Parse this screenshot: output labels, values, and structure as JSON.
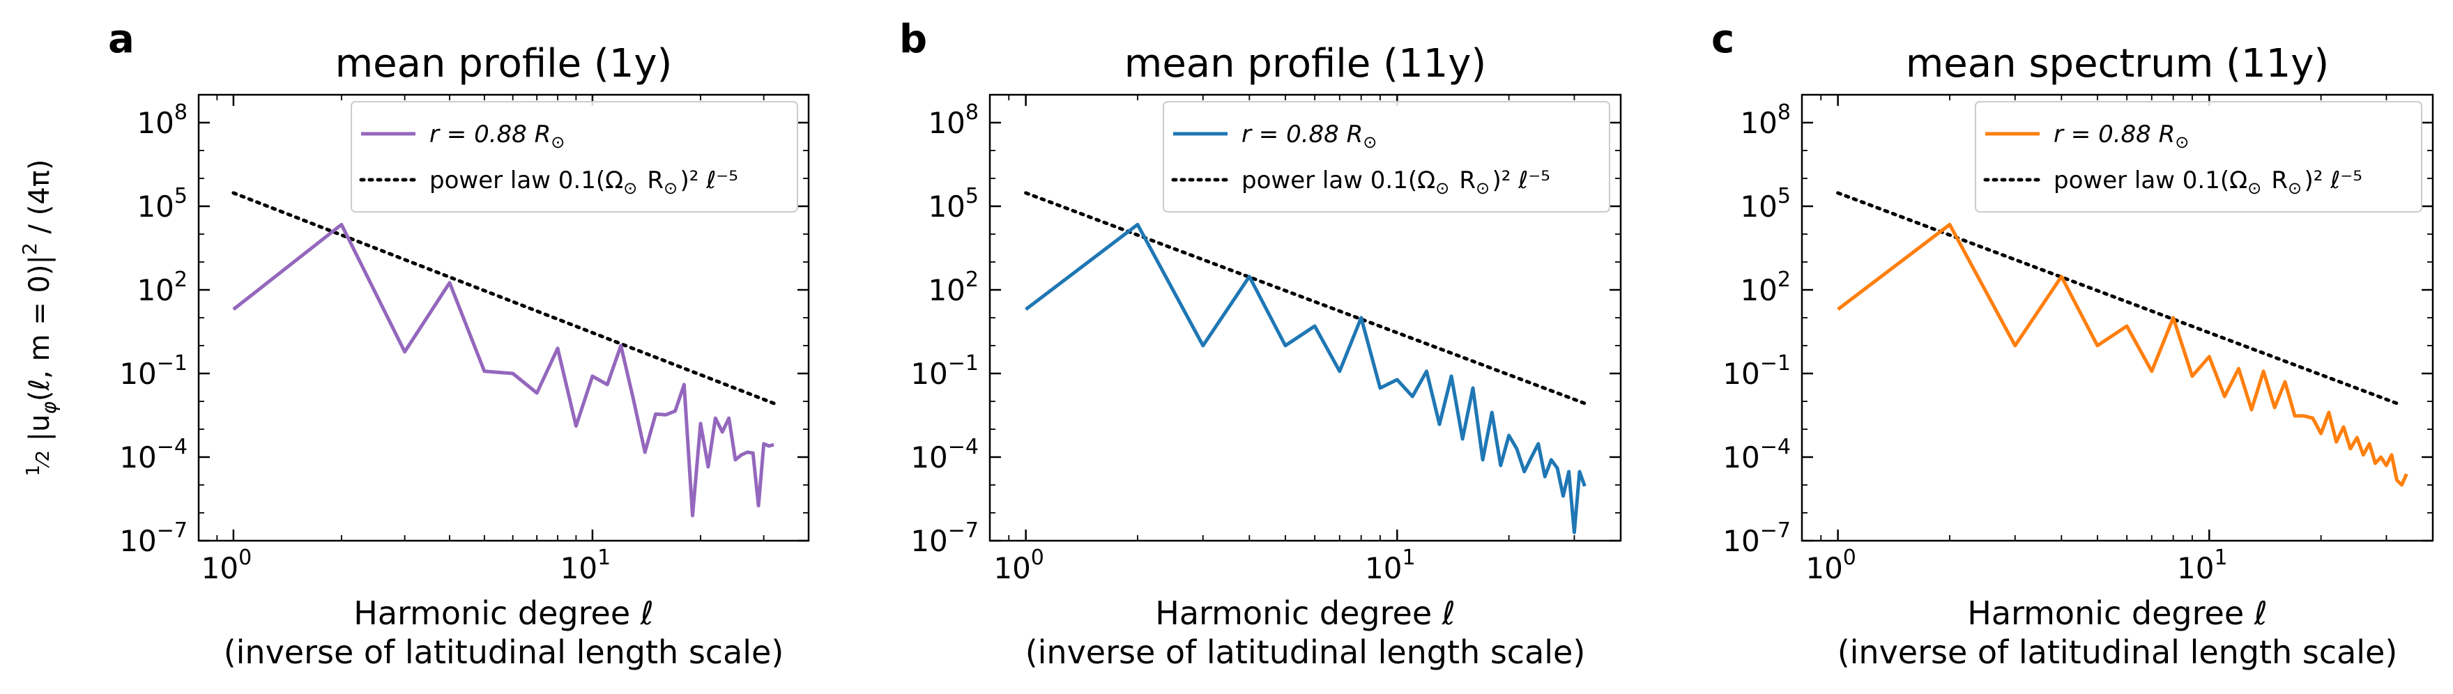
{
  "figure": {
    "ylabel": "½ |u_φ(ℓ, m = 0)|² / (4π)",
    "ylabel_parts": {
      "frac_num": "1",
      "frac_den": "2",
      "body": "|u",
      "sub": "φ",
      "args": "(ℓ, m = 0)|",
      "sup": "2",
      "tail": " / (4π)"
    }
  },
  "chart_data": [
    {
      "type": "line",
      "letter": "a",
      "title": "mean profile (1y)",
      "xlabel_line1": "Harmonic degree ℓ",
      "xlabel_line2": "(inverse of latitudinal length scale)",
      "xscale": "log",
      "yscale": "log",
      "xlim": [
        0.8,
        40
      ],
      "ylim": [
        1e-07,
        1000000000.0
      ],
      "x_ticks": [
        {
          "base": "10",
          "exp": "0",
          "value": 1
        },
        {
          "base": "10",
          "exp": "1",
          "value": 10
        }
      ],
      "y_ticks": [
        {
          "base": "10",
          "exp": "8",
          "value": 100000000.0
        },
        {
          "base": "10",
          "exp": "5",
          "value": 100000.0
        },
        {
          "base": "10",
          "exp": "2",
          "value": 100.0
        },
        {
          "base": "10",
          "exp": "−1",
          "value": 0.1
        },
        {
          "base": "10",
          "exp": "−4",
          "value": 0.0001
        },
        {
          "base": "10",
          "exp": "−7",
          "value": 1e-07
        }
      ],
      "legend": {
        "position": "top-right",
        "series_label": "r = 0.88 R⊙",
        "powerlaw_label": "power law 0.1(Ω⊙ R⊙)² ℓ⁻⁵"
      },
      "series": [
        {
          "name": "r = 0.88 R⊙",
          "color": "#9467bd",
          "x": [
            1,
            2,
            3,
            4,
            5,
            6,
            7,
            8,
            9,
            10,
            11,
            12,
            13,
            14,
            15,
            16,
            17,
            18,
            19,
            20,
            21,
            22,
            23,
            24,
            25,
            26,
            27,
            28,
            29,
            30,
            31,
            32
          ],
          "y": [
            20,
            22000,
            0.6,
            180,
            0.12,
            0.1,
            0.02,
            0.8,
            0.0013,
            0.08,
            0.04,
            1.0,
            0.012,
            0.00015,
            0.0035,
            0.0033,
            0.0045,
            0.04,
            8e-07,
            0.0016,
            4.5e-05,
            0.0025,
            0.0008,
            0.0025,
            8e-05,
            0.00012,
            0.00015,
            0.00014,
            1.8e-06,
            0.0003,
            0.00025,
            0.00028
          ]
        }
      ],
      "powerlaw": {
        "name": "power law 0.1(Ω⊙ R⊙)² ℓ⁻⁵",
        "color": "#000000",
        "x": [
          1,
          32
        ],
        "y": [
          300000,
          0.0085
        ]
      }
    },
    {
      "type": "line",
      "letter": "b",
      "title": "mean profile (11y)",
      "xlabel_line1": "Harmonic degree ℓ",
      "xlabel_line2": "(inverse of latitudinal length scale)",
      "xscale": "log",
      "yscale": "log",
      "xlim": [
        0.8,
        40
      ],
      "ylim": [
        1e-07,
        1000000000.0
      ],
      "x_ticks": [
        {
          "base": "10",
          "exp": "0",
          "value": 1
        },
        {
          "base": "10",
          "exp": "1",
          "value": 10
        }
      ],
      "y_ticks": [
        {
          "base": "10",
          "exp": "8",
          "value": 100000000.0
        },
        {
          "base": "10",
          "exp": "5",
          "value": 100000.0
        },
        {
          "base": "10",
          "exp": "2",
          "value": 100.0
        },
        {
          "base": "10",
          "exp": "−1",
          "value": 0.1
        },
        {
          "base": "10",
          "exp": "−4",
          "value": 0.0001
        },
        {
          "base": "10",
          "exp": "−7",
          "value": 1e-07
        }
      ],
      "legend": {
        "position": "top-right",
        "series_label": "r = 0.88 R⊙",
        "powerlaw_label": "power law 0.1(Ω⊙ R⊙)² ℓ⁻⁵"
      },
      "series": [
        {
          "name": "r = 0.88 R⊙",
          "color": "#1f77b4",
          "x": [
            1,
            2,
            3,
            4,
            5,
            6,
            7,
            8,
            9,
            10,
            11,
            12,
            13,
            14,
            15,
            16,
            17,
            18,
            19,
            20,
            21,
            22,
            23,
            24,
            25,
            26,
            27,
            28,
            29,
            30,
            31,
            32
          ],
          "y": [
            20,
            22000,
            1.0,
            300,
            1.0,
            5.0,
            0.12,
            10,
            0.03,
            0.06,
            0.015,
            0.12,
            0.0015,
            0.08,
            0.00045,
            0.03,
            8e-05,
            0.004,
            5e-05,
            0.0006,
            0.0002,
            3e-05,
            0.0001,
            0.0003,
            2e-05,
            8e-05,
            4e-05,
            4e-06,
            3e-05,
            2e-07,
            3e-05,
            9e-06
          ]
        }
      ],
      "powerlaw": {
        "name": "power law 0.1(Ω⊙ R⊙)² ℓ⁻⁵",
        "color": "#000000",
        "x": [
          1,
          32
        ],
        "y": [
          300000,
          0.0085
        ]
      }
    },
    {
      "type": "line",
      "letter": "c",
      "title": "mean spectrum (11y)",
      "xlabel_line1": "Harmonic degree ℓ",
      "xlabel_line2": "(inverse of latitudinal length scale)",
      "xscale": "log",
      "yscale": "log",
      "xlim": [
        0.8,
        40
      ],
      "ylim": [
        1e-07,
        1000000000.0
      ],
      "x_ticks": [
        {
          "base": "10",
          "exp": "0",
          "value": 1
        },
        {
          "base": "10",
          "exp": "1",
          "value": 10
        }
      ],
      "y_ticks": [
        {
          "base": "10",
          "exp": "8",
          "value": 100000000.0
        },
        {
          "base": "10",
          "exp": "5",
          "value": 100000.0
        },
        {
          "base": "10",
          "exp": "2",
          "value": 100.0
        },
        {
          "base": "10",
          "exp": "−1",
          "value": 0.1
        },
        {
          "base": "10",
          "exp": "−4",
          "value": 0.0001
        },
        {
          "base": "10",
          "exp": "−7",
          "value": 1e-07
        }
      ],
      "legend": {
        "position": "top-right",
        "series_label": "r = 0.88 R⊙",
        "powerlaw_label": "power law 0.1(Ω⊙ R⊙)² ℓ⁻⁵"
      },
      "series": [
        {
          "name": "r = 0.88 R⊙",
          "color": "#ff7f0e",
          "x": [
            1,
            2,
            3,
            4,
            5,
            6,
            7,
            8,
            9,
            10,
            11,
            12,
            13,
            14,
            15,
            16,
            17,
            18,
            19,
            20,
            21,
            22,
            23,
            24,
            25,
            26,
            27,
            28,
            29,
            30,
            31,
            32,
            33,
            34
          ],
          "y": [
            20,
            22000,
            1.0,
            300,
            1.0,
            5.0,
            0.12,
            10,
            0.08,
            0.4,
            0.015,
            0.15,
            0.005,
            0.12,
            0.006,
            0.05,
            0.003,
            0.003,
            0.0025,
            0.0007,
            0.004,
            0.00035,
            0.0012,
            0.0002,
            0.0005,
            0.00012,
            0.0003,
            6e-05,
            0.0001,
            5e-05,
            0.00012,
            1.5e-05,
            1e-05,
            2.5e-05
          ]
        }
      ],
      "powerlaw": {
        "name": "power law 0.1(Ω⊙ R⊙)² ℓ⁻⁵",
        "color": "#000000",
        "x": [
          1,
          32
        ],
        "y": [
          300000,
          0.0085
        ]
      }
    }
  ]
}
